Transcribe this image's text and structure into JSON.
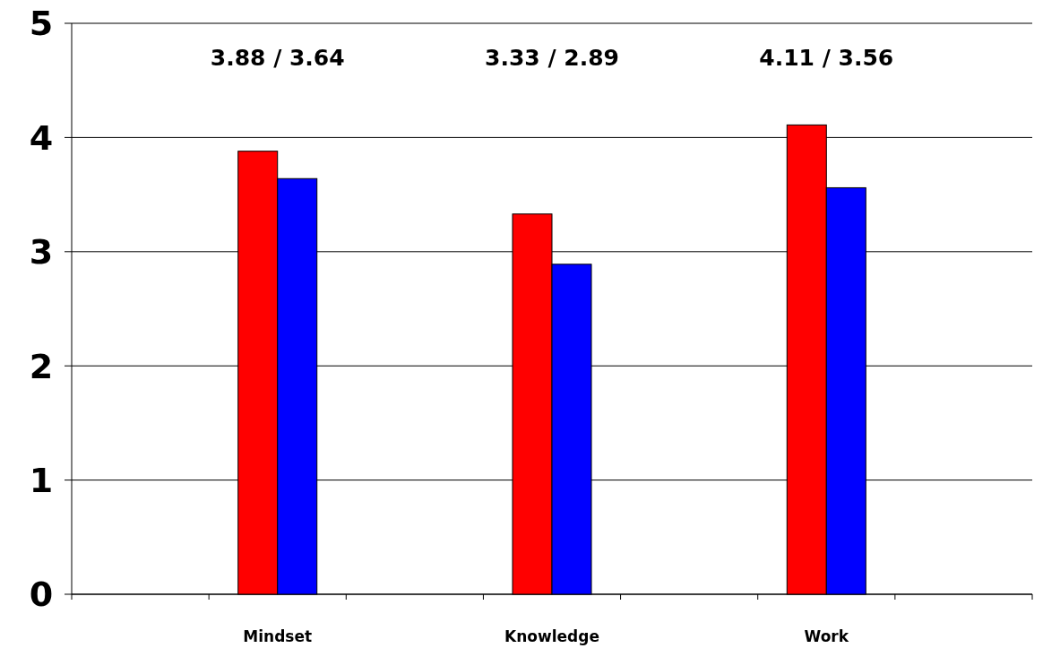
{
  "chart_data": {
    "type": "bar",
    "categories": [
      null,
      "Mindset",
      null,
      "Knowledge",
      null,
      "Work",
      null
    ],
    "series": [
      {
        "color": "#ff0000",
        "values": [
          null,
          3.88,
          null,
          3.33,
          null,
          4.11,
          null
        ]
      },
      {
        "color": "#0000ff",
        "values": [
          null,
          3.64,
          null,
          2.89,
          null,
          3.56,
          null
        ]
      }
    ],
    "ylim": [
      0,
      5
    ],
    "yticks": [
      0,
      1,
      2,
      3,
      4,
      5
    ],
    "grid": "y",
    "annotations": [
      "3.88 / 3.64",
      "3.33 / 2.89",
      "4.11 / 3.56"
    ]
  }
}
